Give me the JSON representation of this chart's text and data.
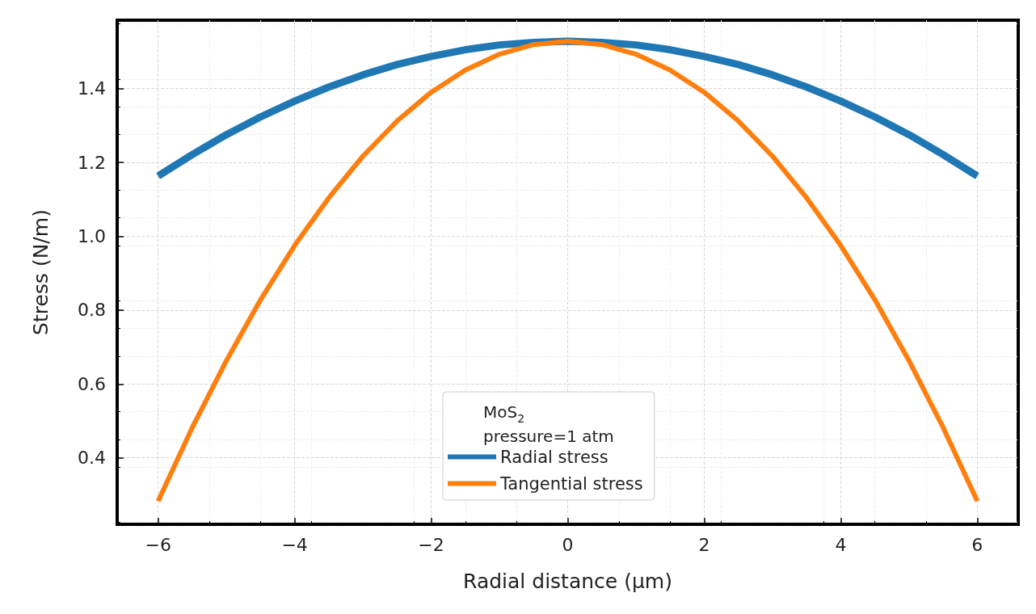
{
  "chart_data": {
    "type": "line",
    "xlabel": "Radial distance (μm)",
    "ylabel": "Stress (N/m)",
    "legend_title": "MoS$_{2}$\npressure=1 atm",
    "x": [
      -6,
      -5.5,
      -5,
      -4.5,
      -4,
      -3.5,
      -3,
      -2.5,
      -2,
      -1.5,
      -1,
      -0.5,
      0,
      0.5,
      1,
      1.5,
      2,
      2.5,
      3,
      3.5,
      4,
      4.5,
      5,
      5.5,
      6
    ],
    "series": [
      {
        "name": "Radial stress",
        "color": "#1f77b4",
        "values": [
          1.163,
          1.221,
          1.275,
          1.323,
          1.366,
          1.404,
          1.437,
          1.465,
          1.487,
          1.505,
          1.518,
          1.525,
          1.528,
          1.525,
          1.518,
          1.505,
          1.487,
          1.465,
          1.437,
          1.404,
          1.366,
          1.323,
          1.275,
          1.221,
          1.163
        ]
      },
      {
        "name": "Tangential stress",
        "color": "#ff7f0e",
        "values": [
          0.283,
          0.482,
          0.663,
          0.828,
          0.975,
          1.104,
          1.217,
          1.312,
          1.39,
          1.45,
          1.493,
          1.519,
          1.528,
          1.519,
          1.493,
          1.45,
          1.39,
          1.312,
          1.217,
          1.104,
          0.975,
          0.828,
          0.663,
          0.482,
          0.283
        ]
      }
    ],
    "xlim": [
      -6.6,
      6.6
    ],
    "xticks": [
      -6,
      -4,
      -2,
      0,
      2,
      4,
      6
    ],
    "ylim": [
      0.22,
      1.585
    ],
    "yticks": [
      0.4,
      0.6,
      0.8,
      {
        "value": 1,
        "label": "1.0"
      },
      1.2,
      1.4
    ],
    "grid": true,
    "legend": "bottom",
    "marker": "none",
    "line_style": "solid"
  }
}
